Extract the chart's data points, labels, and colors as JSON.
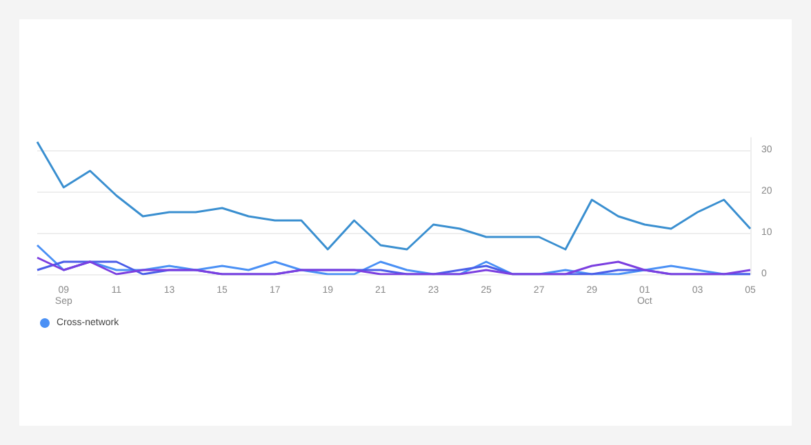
{
  "chart_data": {
    "type": "line",
    "categories": [
      null,
      "09\nSep",
      null,
      "11",
      null,
      "13",
      null,
      "15",
      null,
      "17",
      null,
      "19",
      null,
      "21",
      null,
      "23",
      null,
      "25",
      null,
      "27",
      null,
      "29",
      null,
      "01\nOct",
      null,
      "03",
      null,
      "05"
    ],
    "series": [
      {
        "color": "#3a8fd0",
        "values": [
          32,
          21,
          25,
          19,
          14,
          15,
          15,
          16,
          14,
          13,
          13,
          6,
          13,
          7,
          6,
          12,
          11,
          9,
          9,
          9,
          6,
          18,
          14,
          12,
          11,
          15,
          18,
          11
        ]
      },
      {
        "name": "Cross-network",
        "color": "#4a90f5",
        "values": [
          7,
          1,
          3,
          1,
          1,
          2,
          1,
          2,
          1,
          3,
          1,
          0,
          0,
          3,
          1,
          0,
          0,
          3,
          0,
          0,
          1,
          0,
          0,
          1,
          2,
          1,
          0,
          0
        ]
      },
      {
        "color": "#4a5de8",
        "values": [
          1,
          3,
          3,
          3,
          0,
          1,
          1,
          0,
          0,
          0,
          1,
          1,
          1,
          1,
          0,
          0,
          1,
          2,
          0,
          0,
          0,
          0,
          1,
          1,
          0,
          0,
          0,
          0
        ]
      },
      {
        "color": "#7b3fe0",
        "values": [
          4,
          1,
          3,
          0,
          1,
          1,
          1,
          0,
          0,
          0,
          1,
          1,
          1,
          0,
          0,
          0,
          0,
          1,
          0,
          0,
          0,
          2,
          3,
          1,
          0,
          0,
          0,
          1
        ]
      }
    ],
    "ylim": [
      0,
      33
    ],
    "yticks": [
      0,
      10,
      20,
      30
    ],
    "grid": "y",
    "legend": "bottom left",
    "marker": "none",
    "line_style": "solid"
  }
}
